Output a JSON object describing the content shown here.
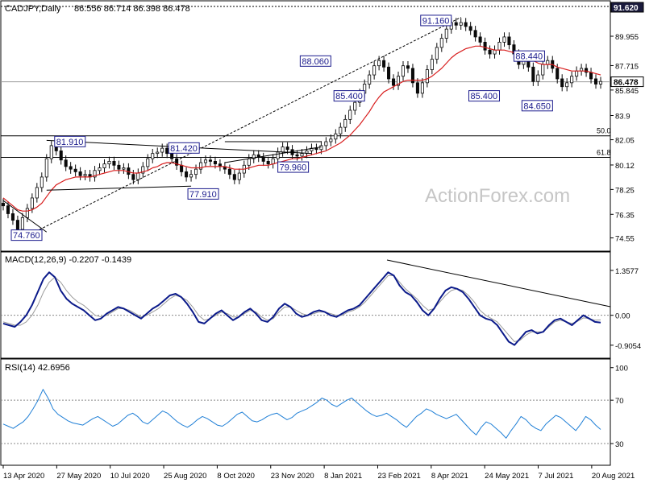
{
  "header": {
    "symbol": "CADJPY,Daily",
    "ohlc": "86.556 86.714 86.398 86.478"
  },
  "watermark": "ActionForex.com",
  "colors": {
    "candle": "#0a0a0a",
    "ema": "#d81e1e",
    "macd": "#0b1a8a",
    "signal": "#9a9a9a",
    "rsi": "#1f7fd6",
    "box": "#1a1a8c",
    "current": "#1a1a3c"
  },
  "chart_data": [
    {
      "type": "candlestick",
      "title": "CADJPY,Daily",
      "ylim": [
        73.6,
        92.6
      ],
      "yticks": [
        74.55,
        76.35,
        78.25,
        80.12,
        82.05,
        83.9,
        85.845,
        87.715,
        89.955
      ],
      "y_tick_labels": [
        "74.55",
        "76.35",
        "78.25",
        "80.12",
        "82.05",
        "83.9",
        "85.845",
        "87.715",
        "89.955"
      ],
      "x_labels": [
        "13 Apr 2020",
        "27 May 2020",
        "10 Jul 2020",
        "25 Aug 2020",
        "8 Oct 2020",
        "23 Nov 2020",
        "8 Jan 2021",
        "23 Feb 2021",
        "8 Apr 2021",
        "24 May 2021",
        "7 Jul 2021",
        "20 Aug 2021"
      ],
      "series": [
        {
          "name": "Close",
          "values": [
            77.0,
            76.4,
            75.9,
            75.2,
            76.1,
            76.8,
            77.6,
            78.4,
            79.2,
            80.6,
            81.6,
            81.2,
            80.5,
            80.0,
            79.8,
            79.6,
            79.3,
            79.4,
            79.2,
            79.7,
            79.9,
            80.2,
            80.4,
            80.1,
            79.8,
            79.9,
            79.4,
            79.0,
            79.5,
            80.0,
            80.6,
            81.0,
            81.1,
            81.4,
            81.0,
            80.6,
            80.1,
            79.6,
            79.2,
            79.4,
            79.8,
            80.3,
            80.5,
            80.4,
            80.2,
            80.0,
            79.8,
            79.4,
            79.0,
            79.5,
            80.1,
            80.6,
            80.9,
            80.7,
            80.4,
            80.2,
            80.6,
            81.1,
            81.5,
            81.3,
            80.9,
            80.8,
            81.0,
            81.2,
            81.4,
            81.3,
            81.6,
            81.9,
            82.1,
            82.5,
            83.0,
            83.6,
            84.3,
            84.9,
            85.6,
            86.3,
            87.0,
            87.7,
            88.1,
            87.6,
            86.7,
            86.2,
            86.9,
            87.7,
            87.5,
            86.4,
            85.6,
            86.4,
            87.4,
            88.2,
            89.1,
            89.8,
            90.5,
            91.0,
            90.8,
            91.0,
            90.7,
            90.4,
            89.9,
            89.5,
            88.9,
            88.6,
            88.9,
            89.5,
            89.9,
            89.3,
            88.6,
            87.8,
            88.4,
            87.6,
            86.5,
            87.0,
            87.8,
            88.1,
            87.5,
            86.7,
            86.1,
            86.4,
            86.9,
            87.3,
            87.5,
            87.2,
            86.7,
            86.3,
            86.5
          ]
        },
        {
          "name": "EMA",
          "values": [
            77.6,
            77.3,
            77.0,
            76.7,
            76.6,
            76.6,
            76.7,
            76.9,
            77.2,
            77.7,
            78.2,
            78.6,
            78.8,
            79.0,
            79.1,
            79.2,
            79.2,
            79.2,
            79.2,
            79.3,
            79.4,
            79.5,
            79.6,
            79.7,
            79.7,
            79.7,
            79.6,
            79.5,
            79.5,
            79.6,
            79.7,
            79.9,
            80.0,
            80.2,
            80.3,
            80.3,
            80.2,
            80.1,
            80.0,
            79.9,
            79.9,
            79.9,
            80.0,
            80.0,
            80.0,
            80.0,
            80.0,
            79.9,
            79.8,
            79.8,
            79.8,
            79.9,
            80.0,
            80.1,
            80.1,
            80.1,
            80.2,
            80.3,
            80.4,
            80.5,
            80.6,
            80.6,
            80.7,
            80.8,
            80.9,
            81.0,
            81.1,
            81.2,
            81.4,
            81.6,
            81.8,
            82.1,
            82.4,
            82.8,
            83.2,
            83.7,
            84.2,
            84.8,
            85.3,
            85.7,
            85.9,
            86.1,
            86.3,
            86.5,
            86.6,
            86.6,
            86.6,
            86.6,
            86.7,
            86.9,
            87.2,
            87.5,
            87.9,
            88.3,
            88.6,
            88.8,
            89.0,
            89.1,
            89.2,
            89.2,
            89.1,
            89.0,
            88.9,
            88.9,
            88.9,
            88.8,
            88.7,
            88.5,
            88.4,
            88.3,
            88.1,
            87.9,
            87.8,
            87.8,
            87.8,
            87.6,
            87.5,
            87.4,
            87.3,
            87.3,
            87.3,
            87.3,
            87.2,
            87.1,
            87.0
          ]
        }
      ],
      "annotations": [
        "81.910",
        "81.420",
        "77.910",
        "79.960",
        "88.060",
        "85.400",
        "91.160",
        "88.440",
        "85.400",
        "84.650",
        "74.760"
      ],
      "fib_labels": [
        "50.0",
        "61.8"
      ],
      "fib_levels": [
        82.35,
        80.7
      ],
      "current_price": "86.478",
      "high_price": "91.620"
    },
    {
      "type": "line",
      "title": "MACD(12,26,9) -0.2207 -0.1439",
      "ylim": [
        -1.25,
        1.55
      ],
      "y_tick_labels": [
        "1.3577",
        "0.00",
        "-0.9054"
      ],
      "yticks": [
        1.3577,
        0.0,
        -0.9054
      ],
      "series": [
        {
          "name": "MACD",
          "values": [
            -0.25,
            -0.3,
            -0.35,
            -0.2,
            0.0,
            0.3,
            0.7,
            1.1,
            1.3,
            1.15,
            0.75,
            0.5,
            0.35,
            0.25,
            0.15,
            0.0,
            -0.15,
            -0.1,
            0.05,
            0.15,
            0.25,
            0.2,
            0.1,
            0.0,
            -0.1,
            0.05,
            0.2,
            0.3,
            0.45,
            0.6,
            0.65,
            0.55,
            0.35,
            0.1,
            -0.2,
            -0.25,
            -0.1,
            0.05,
            0.15,
            0.0,
            -0.15,
            -0.05,
            0.1,
            0.2,
            0.05,
            -0.15,
            -0.2,
            -0.05,
            0.2,
            0.35,
            0.25,
            0.05,
            -0.05,
            0.0,
            0.1,
            0.15,
            0.1,
            0.0,
            -0.05,
            0.05,
            0.15,
            0.2,
            0.3,
            0.5,
            0.7,
            0.9,
            1.1,
            1.3,
            1.2,
            0.9,
            0.7,
            0.6,
            0.4,
            0.15,
            0.0,
            0.2,
            0.5,
            0.75,
            0.85,
            0.8,
            0.7,
            0.5,
            0.25,
            0.0,
            -0.1,
            -0.15,
            -0.3,
            -0.55,
            -0.8,
            -0.9,
            -0.7,
            -0.5,
            -0.45,
            -0.55,
            -0.5,
            -0.3,
            -0.15,
            -0.1,
            -0.2,
            -0.3,
            -0.15,
            0.0,
            -0.1,
            -0.2,
            -0.22
          ]
        },
        {
          "name": "Signal",
          "values": [
            -0.2,
            -0.25,
            -0.3,
            -0.3,
            -0.2,
            0.0,
            0.3,
            0.7,
            1.0,
            1.15,
            1.0,
            0.75,
            0.55,
            0.4,
            0.3,
            0.15,
            0.0,
            -0.05,
            0.0,
            0.1,
            0.2,
            0.2,
            0.15,
            0.05,
            -0.05,
            0.0,
            0.1,
            0.2,
            0.35,
            0.5,
            0.6,
            0.55,
            0.45,
            0.25,
            0.0,
            -0.15,
            -0.1,
            0.0,
            0.1,
            0.05,
            -0.05,
            -0.05,
            0.05,
            0.15,
            0.1,
            -0.05,
            -0.15,
            -0.1,
            0.1,
            0.25,
            0.25,
            0.15,
            0.05,
            0.0,
            0.05,
            0.1,
            0.1,
            0.05,
            0.0,
            0.0,
            0.1,
            0.15,
            0.25,
            0.4,
            0.6,
            0.8,
            1.0,
            1.2,
            1.2,
            1.0,
            0.8,
            0.65,
            0.5,
            0.3,
            0.15,
            0.2,
            0.4,
            0.6,
            0.75,
            0.8,
            0.75,
            0.6,
            0.4,
            0.15,
            0.0,
            -0.1,
            -0.2,
            -0.4,
            -0.6,
            -0.8,
            -0.75,
            -0.6,
            -0.5,
            -0.5,
            -0.5,
            -0.35,
            -0.2,
            -0.15,
            -0.2,
            -0.25,
            -0.18,
            -0.08,
            -0.1,
            -0.15,
            -0.14
          ]
        }
      ]
    },
    {
      "type": "line",
      "title": "RSI(14) 42.6956",
      "ylim": [
        10,
        105
      ],
      "y_tick_labels": [
        "100",
        "70",
        "30"
      ],
      "yticks": [
        100,
        70,
        30
      ],
      "series": [
        {
          "name": "RSI",
          "values": [
            48,
            46,
            44,
            47,
            50,
            55,
            62,
            70,
            80,
            72,
            62,
            57,
            54,
            51,
            49,
            48,
            47,
            50,
            53,
            55,
            52,
            49,
            46,
            48,
            52,
            56,
            58,
            55,
            50,
            48,
            52,
            56,
            60,
            58,
            54,
            50,
            47,
            45,
            48,
            52,
            55,
            53,
            50,
            47,
            46,
            49,
            53,
            57,
            59,
            55,
            51,
            50,
            52,
            55,
            57,
            58,
            55,
            52,
            54,
            58,
            60,
            62,
            65,
            68,
            72,
            70,
            66,
            64,
            67,
            70,
            72,
            68,
            64,
            60,
            57,
            55,
            56,
            58,
            55,
            52,
            48,
            45,
            50,
            55,
            58,
            62,
            60,
            57,
            55,
            53,
            55,
            57,
            52,
            47,
            42,
            38,
            45,
            50,
            48,
            44,
            40,
            35,
            42,
            48,
            55,
            52,
            47,
            44,
            42,
            48,
            52,
            56,
            54,
            50,
            46,
            42,
            48,
            55,
            52,
            47,
            43
          ]
        }
      ]
    }
  ]
}
